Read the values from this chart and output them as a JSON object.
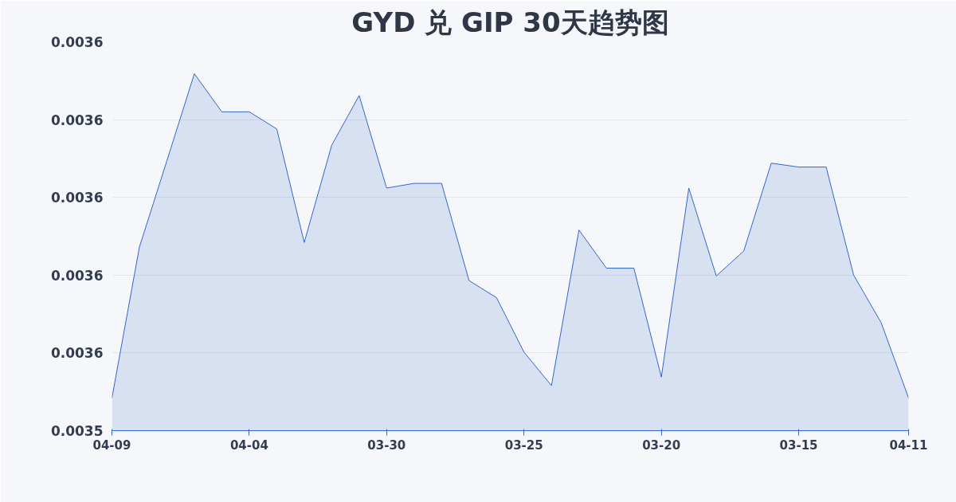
{
  "chart_data": {
    "type": "area",
    "title": "GYD 兑 GIP 30天趋势图",
    "categories": [
      "04-09",
      null,
      null,
      null,
      null,
      "04-04",
      null,
      null,
      null,
      null,
      "03-30",
      null,
      null,
      null,
      null,
      "03-25",
      null,
      null,
      null,
      null,
      "03-20",
      null,
      null,
      null,
      null,
      "03-15",
      null,
      null,
      null,
      "04-11"
    ],
    "series": [
      {
        "color": "#3366cc",
        "values": [
          0.0035542,
          0.0035736,
          0.0035847,
          0.0035959,
          0.003591,
          0.003591,
          0.0035888,
          0.0035742,
          0.0035867,
          0.0035931,
          0.0035812,
          0.0035818,
          0.0035818,
          0.0035693,
          0.0035671,
          0.0035601,
          0.0035558,
          0.0035758,
          0.0035709,
          0.0035709,
          0.0035569,
          0.0035812,
          0.0035699,
          0.0035731,
          0.0035844,
          0.0035839,
          0.0035839,
          0.00357,
          0.0035639,
          0.0035542
        ]
      }
    ],
    "ylim": [
      0.00355,
      0.0036
    ],
    "yticks": [
      {
        "value": 0.00355,
        "label": "0.0035"
      },
      {
        "value": 0.00356,
        "label": "0.0036"
      },
      {
        "value": 0.00357,
        "label": "0.0036"
      },
      {
        "value": 0.00358,
        "label": "0.0036"
      },
      {
        "value": 0.00359,
        "label": "0.0036"
      },
      {
        "value": 0.0036,
        "label": "0.0036"
      }
    ],
    "grid": "y",
    "marker": "none",
    "line_style": "solid"
  }
}
